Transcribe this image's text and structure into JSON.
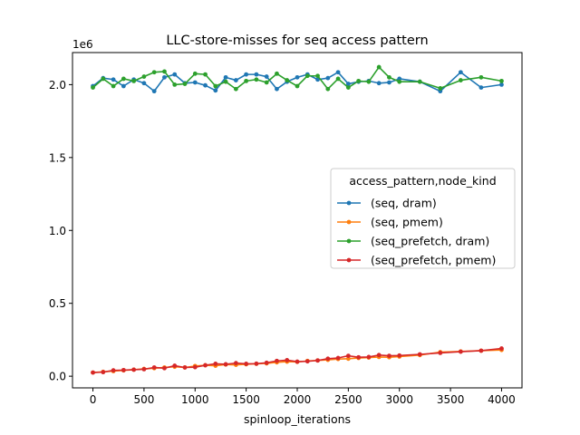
{
  "chart_data": {
    "type": "line",
    "title": "LLC-store-misses for seq access pattern",
    "xlabel": "spinloop_iterations",
    "ylabel": "",
    "offset_text": "1e6",
    "xlim": [
      -200,
      4200
    ],
    "ylim": [
      -80000,
      2220000
    ],
    "xticks": [
      0,
      500,
      1000,
      1500,
      2000,
      2500,
      3000,
      3500,
      4000
    ],
    "xtick_labels": [
      "0",
      "500",
      "1000",
      "1500",
      "2000",
      "2500",
      "3000",
      "3500",
      "4000"
    ],
    "yticks": [
      0,
      500000,
      1000000,
      1500000,
      2000000
    ],
    "ytick_labels": [
      "0.0",
      "0.5",
      "1.0",
      "1.5",
      "2.0"
    ],
    "grid": false,
    "legend": {
      "title": "access_pattern,node_kind",
      "placement": "center-right"
    },
    "x": [
      0,
      100,
      200,
      300,
      400,
      500,
      600,
      700,
      800,
      900,
      1000,
      1100,
      1200,
      1300,
      1400,
      1500,
      1600,
      1700,
      1800,
      1900,
      2000,
      2100,
      2200,
      2300,
      2400,
      2500,
      2600,
      2700,
      2800,
      2900,
      3000,
      3200,
      3400,
      3600,
      3800,
      4000
    ],
    "series": [
      {
        "name": "(seq, dram)",
        "color": "#1f77b4",
        "values": [
          1990000,
          2045000,
          2035000,
          1990000,
          2035000,
          2010000,
          1955000,
          2050000,
          2070000,
          2010000,
          2015000,
          1995000,
          1960000,
          2050000,
          2030000,
          2070000,
          2070000,
          2055000,
          1970000,
          2020000,
          2050000,
          2070000,
          2035000,
          2045000,
          2085000,
          2005000,
          2020000,
          2025000,
          2010000,
          2015000,
          2040000,
          2020000,
          1955000,
          2085000,
          1980000,
          2000000
        ]
      },
      {
        "name": "(seq, pmem)",
        "color": "#ff7f0e",
        "values": [
          25000,
          30000,
          35000,
          40000,
          45000,
          50000,
          55000,
          60000,
          65000,
          60000,
          70000,
          75000,
          72000,
          80000,
          78000,
          82000,
          85000,
          88000,
          95000,
          100000,
          98000,
          105000,
          108000,
          112000,
          118000,
          120000,
          125000,
          128000,
          132000,
          130000,
          135000,
          145000,
          165000,
          170000,
          175000,
          180000
        ]
      },
      {
        "name": "(seq_prefetch, dram)",
        "color": "#2ca02c",
        "values": [
          1980000,
          2040000,
          1990000,
          2040000,
          2025000,
          2055000,
          2085000,
          2090000,
          2000000,
          2005000,
          2075000,
          2070000,
          1990000,
          2020000,
          1970000,
          2025000,
          2035000,
          2015000,
          2075000,
          2030000,
          1990000,
          2060000,
          2060000,
          1970000,
          2040000,
          1980000,
          2025000,
          2020000,
          2120000,
          2050000,
          2020000,
          2020000,
          1975000,
          2030000,
          2050000,
          2025000
        ]
      },
      {
        "name": "(seq_prefetch, pmem)",
        "color": "#d62728",
        "values": [
          25000,
          28000,
          40000,
          42000,
          45000,
          48000,
          60000,
          55000,
          72000,
          60000,
          62000,
          75000,
          85000,
          82000,
          90000,
          85000,
          86000,
          92000,
          105000,
          110000,
          100000,
          102000,
          108000,
          120000,
          125000,
          140000,
          130000,
          132000,
          145000,
          140000,
          142000,
          150000,
          160000,
          168000,
          175000,
          190000
        ]
      }
    ]
  }
}
